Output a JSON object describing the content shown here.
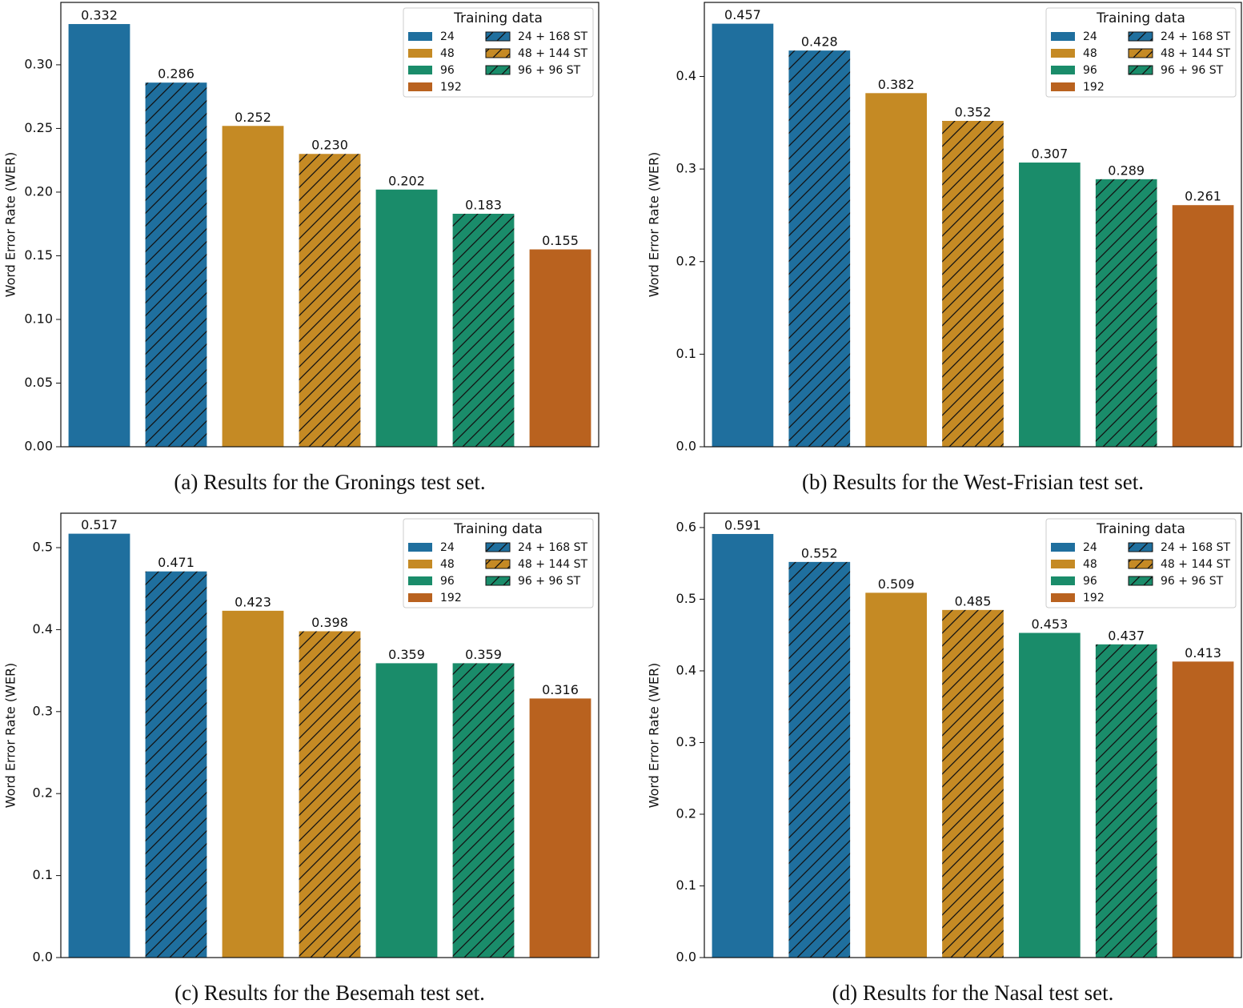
{
  "chart_data": [
    {
      "type": "bar",
      "caption": "(a) Results for the Gronings test set.",
      "ylabel": "Word Error Rate (WER)",
      "legend_title": "Training data",
      "legend": "upper right",
      "ylim": [
        0,
        0.349
      ],
      "yticks": [
        {
          "value": 0,
          "label": "0.00"
        },
        {
          "value": 0.05,
          "label": "0.05"
        },
        {
          "value": 0.1,
          "label": "0.10"
        },
        {
          "value": 0.15,
          "label": "0.15"
        },
        {
          "value": 0.2,
          "label": "0.20"
        },
        {
          "value": 0.25,
          "label": "0.25"
        },
        {
          "value": 0.3,
          "label": "0.30"
        }
      ],
      "series": [
        {
          "name": "24",
          "color": "#1f6f9e",
          "hatched": false,
          "values": [
            0.332
          ],
          "value_labels": [
            "0.332"
          ]
        },
        {
          "name": "24 + 168 ST",
          "color": "#1f6f9e",
          "hatched": true,
          "values": [
            0.286
          ],
          "value_labels": [
            "0.286"
          ]
        },
        {
          "name": "48",
          "color": "#c58a24",
          "hatched": false,
          "values": [
            0.252
          ],
          "value_labels": [
            "0.252"
          ]
        },
        {
          "name": "48 + 144 ST",
          "color": "#c58a24",
          "hatched": true,
          "values": [
            0.23
          ],
          "value_labels": [
            "0.230"
          ]
        },
        {
          "name": "96",
          "color": "#1a8c6a",
          "hatched": false,
          "values": [
            0.202
          ],
          "value_labels": [
            "0.202"
          ]
        },
        {
          "name": "96 + 96 ST",
          "color": "#1a8c6a",
          "hatched": true,
          "values": [
            0.183
          ],
          "value_labels": [
            "0.183"
          ]
        },
        {
          "name": "192",
          "color": "#b9621f",
          "hatched": false,
          "values": [
            0.155
          ],
          "value_labels": [
            "0.155"
          ]
        }
      ]
    },
    {
      "type": "bar",
      "caption": "(b) Results for the West-Frisian test set.",
      "ylabel": "Word Error Rate (WER)",
      "legend_title": "Training data",
      "legend": "upper right",
      "ylim": [
        0,
        0.48
      ],
      "yticks": [
        {
          "value": 0,
          "label": "0.0"
        },
        0.1,
        0.2,
        0.3,
        0.4
      ],
      "series": [
        {
          "name": "24",
          "color": "#1f6f9e",
          "hatched": false,
          "values": [
            0.457
          ],
          "value_labels": [
            "0.457"
          ]
        },
        {
          "name": "24 + 168 ST",
          "color": "#1f6f9e",
          "hatched": true,
          "values": [
            0.428
          ],
          "value_labels": [
            "0.428"
          ]
        },
        {
          "name": "48",
          "color": "#c58a24",
          "hatched": false,
          "values": [
            0.382
          ],
          "value_labels": [
            "0.382"
          ]
        },
        {
          "name": "48 + 144 ST",
          "color": "#c58a24",
          "hatched": true,
          "values": [
            0.352
          ],
          "value_labels": [
            "0.352"
          ]
        },
        {
          "name": "96",
          "color": "#1a8c6a",
          "hatched": false,
          "values": [
            0.307
          ],
          "value_labels": [
            "0.307"
          ]
        },
        {
          "name": "96 + 96 ST",
          "color": "#1a8c6a",
          "hatched": true,
          "values": [
            0.289
          ],
          "value_labels": [
            "0.289"
          ]
        },
        {
          "name": "192",
          "color": "#b9621f",
          "hatched": false,
          "values": [
            0.261
          ],
          "value_labels": [
            "0.261"
          ]
        }
      ]
    },
    {
      "type": "bar",
      "caption": "(c) Results for the Besemah test set.",
      "ylabel": "Word Error Rate (WER)",
      "legend_title": "Training data",
      "legend": "upper right",
      "ylim": [
        0,
        0.542
      ],
      "yticks": [
        {
          "value": 0,
          "label": "0.0"
        },
        0.1,
        0.2,
        0.3,
        0.4,
        0.5
      ],
      "series": [
        {
          "name": "24",
          "color": "#1f6f9e",
          "hatched": false,
          "values": [
            0.517
          ],
          "value_labels": [
            "0.517"
          ]
        },
        {
          "name": "24 + 168 ST",
          "color": "#1f6f9e",
          "hatched": true,
          "values": [
            0.471
          ],
          "value_labels": [
            "0.471"
          ]
        },
        {
          "name": "48",
          "color": "#c58a24",
          "hatched": false,
          "values": [
            0.423
          ],
          "value_labels": [
            "0.423"
          ]
        },
        {
          "name": "48 + 144 ST",
          "color": "#c58a24",
          "hatched": true,
          "values": [
            0.398
          ],
          "value_labels": [
            "0.398"
          ]
        },
        {
          "name": "96",
          "color": "#1a8c6a",
          "hatched": false,
          "values": [
            0.359
          ],
          "value_labels": [
            "0.359"
          ]
        },
        {
          "name": "96 + 96 ST",
          "color": "#1a8c6a",
          "hatched": true,
          "values": [
            0.359
          ],
          "value_labels": [
            "0.359"
          ]
        },
        {
          "name": "192",
          "color": "#b9621f",
          "hatched": false,
          "values": [
            0.316
          ],
          "value_labels": [
            "0.316"
          ]
        }
      ]
    },
    {
      "type": "bar",
      "caption": "(d) Results for the Nasal test set.",
      "ylabel": "Word Error Rate (WER)",
      "legend_title": "Training data",
      "legend": "upper right",
      "ylim": [
        0,
        0.62
      ],
      "yticks": [
        {
          "value": 0,
          "label": "0.0"
        },
        0.1,
        0.2,
        0.3,
        0.4,
        0.5,
        0.6
      ],
      "series": [
        {
          "name": "24",
          "color": "#1f6f9e",
          "hatched": false,
          "values": [
            0.591
          ],
          "value_labels": [
            "0.591"
          ]
        },
        {
          "name": "24 + 168 ST",
          "color": "#1f6f9e",
          "hatched": true,
          "values": [
            0.552
          ],
          "value_labels": [
            "0.552"
          ]
        },
        {
          "name": "48",
          "color": "#c58a24",
          "hatched": false,
          "values": [
            0.509
          ],
          "value_labels": [
            "0.509"
          ]
        },
        {
          "name": "48 + 144 ST",
          "color": "#c58a24",
          "hatched": true,
          "values": [
            0.485
          ],
          "value_labels": [
            "0.485"
          ]
        },
        {
          "name": "96",
          "color": "#1a8c6a",
          "hatched": false,
          "values": [
            0.453
          ],
          "value_labels": [
            "0.453"
          ]
        },
        {
          "name": "96 + 96 ST",
          "color": "#1a8c6a",
          "hatched": true,
          "values": [
            0.437
          ],
          "value_labels": [
            "0.437"
          ]
        },
        {
          "name": "192",
          "color": "#b9621f",
          "hatched": false,
          "values": [
            0.413
          ],
          "value_labels": [
            "0.413"
          ]
        }
      ]
    }
  ]
}
